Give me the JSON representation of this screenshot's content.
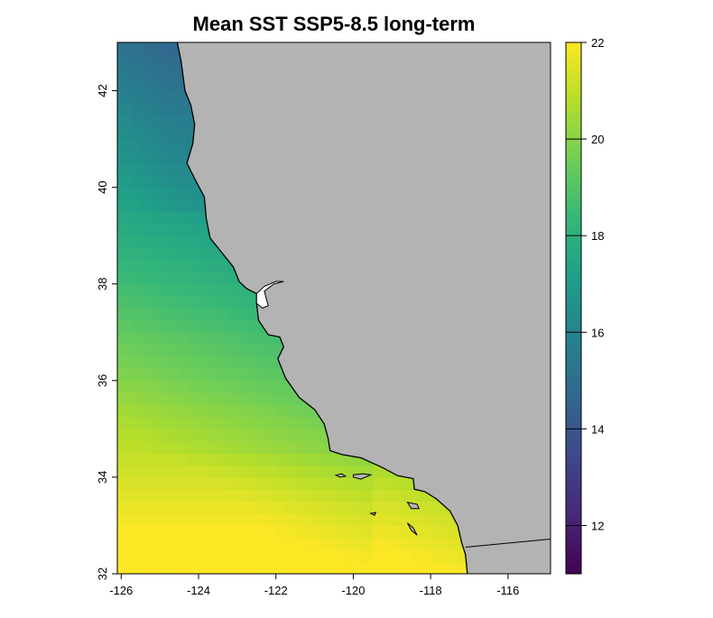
{
  "title": "Mean SST SSP5-8.5 long-term",
  "map": {
    "x_axis": {
      "range": [
        -126.1,
        -114.9
      ],
      "ticks": [
        -126,
        -124,
        -122,
        -120,
        -118,
        -116
      ],
      "tick_labels": [
        "-126",
        "-124",
        "-122",
        "-120",
        "-118",
        "-116"
      ]
    },
    "y_axis": {
      "range": [
        32,
        43
      ],
      "ticks": [
        32,
        34,
        36,
        38,
        40,
        42
      ],
      "tick_labels": [
        "32",
        "34",
        "36",
        "38",
        "40",
        "42"
      ]
    },
    "land_color": "#b3b3b3",
    "coastline_color": "#000000",
    "variable": "sea surface temperature",
    "gradient_note": "warmest in the south (~21.5) cooling northward to ~15.5 near 42N; nearshore cooler than offshore"
  },
  "legend": {
    "range": [
      11,
      22
    ],
    "ticks": [
      12,
      14,
      16,
      18,
      20,
      22
    ],
    "tick_labels": [
      "12",
      "14",
      "16",
      "18",
      "20",
      "22"
    ],
    "palette": [
      "#440154",
      "#482878",
      "#3e4989",
      "#31688e",
      "#26828e",
      "#1f9e89",
      "#35b779",
      "#6ece58",
      "#b5de2b",
      "#fde725"
    ]
  }
}
